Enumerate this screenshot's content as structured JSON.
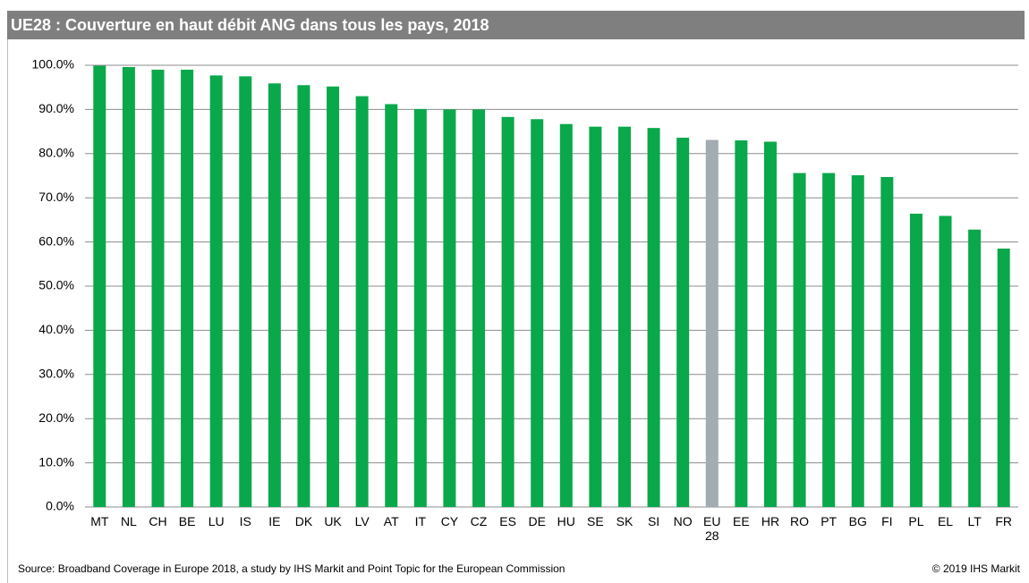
{
  "chart_data": {
    "type": "bar",
    "title": "UE28 : Couverture en haut débit ANG dans tous les pays, 2018",
    "categories": [
      "MT",
      "NL",
      "CH",
      "BE",
      "LU",
      "IS",
      "IE",
      "DK",
      "UK",
      "LV",
      "AT",
      "IT",
      "CY",
      "CZ",
      "ES",
      "DE",
      "HU",
      "SE",
      "SK",
      "SI",
      "NO",
      "EU 28",
      "EE",
      "HR",
      "RO",
      "PT",
      "BG",
      "FI",
      "PL",
      "EL",
      "LT",
      "FR"
    ],
    "values": [
      99.9,
      99.6,
      99.0,
      99.0,
      97.7,
      97.5,
      95.9,
      95.5,
      95.2,
      93.0,
      91.2,
      90.1,
      90.0,
      90.0,
      88.3,
      87.8,
      86.7,
      86.1,
      86.1,
      85.8,
      83.6,
      83.1,
      83.0,
      82.7,
      75.6,
      75.6,
      75.1,
      74.7,
      66.4,
      65.9,
      62.8,
      58.5
    ],
    "colors": [
      "#09a84b",
      "#09a84b",
      "#09a84b",
      "#09a84b",
      "#09a84b",
      "#09a84b",
      "#09a84b",
      "#09a84b",
      "#09a84b",
      "#09a84b",
      "#09a84b",
      "#09a84b",
      "#09a84b",
      "#09a84b",
      "#09a84b",
      "#09a84b",
      "#09a84b",
      "#09a84b",
      "#09a84b",
      "#09a84b",
      "#09a84b",
      "#a3abb3",
      "#09a84b",
      "#09a84b",
      "#09a84b",
      "#09a84b",
      "#09a84b",
      "#09a84b",
      "#09a84b",
      "#09a84b",
      "#09a84b",
      "#09a84b"
    ],
    "ylim": [
      0,
      100
    ],
    "yticks": [
      {
        "value": 0,
        "label": "0.0%"
      },
      {
        "value": 10,
        "label": "10.0%"
      },
      {
        "value": 20,
        "label": "20.0%"
      },
      {
        "value": 30,
        "label": "30.0%"
      },
      {
        "value": 40,
        "label": "40.0%"
      },
      {
        "value": 50,
        "label": "50.0%"
      },
      {
        "value": 60,
        "label": "60.0%"
      },
      {
        "value": 70,
        "label": "70.0%"
      },
      {
        "value": 80,
        "label": "80.0%"
      },
      {
        "value": 90,
        "label": "90.0%"
      },
      {
        "value": 100,
        "label": "100.0%"
      }
    ],
    "grid": true,
    "source": "Source: Broadband Coverage in Europe 2018, a study by IHS Markit and Point Topic for the European Commission",
    "copyright": "© 2019 IHS Markit"
  }
}
